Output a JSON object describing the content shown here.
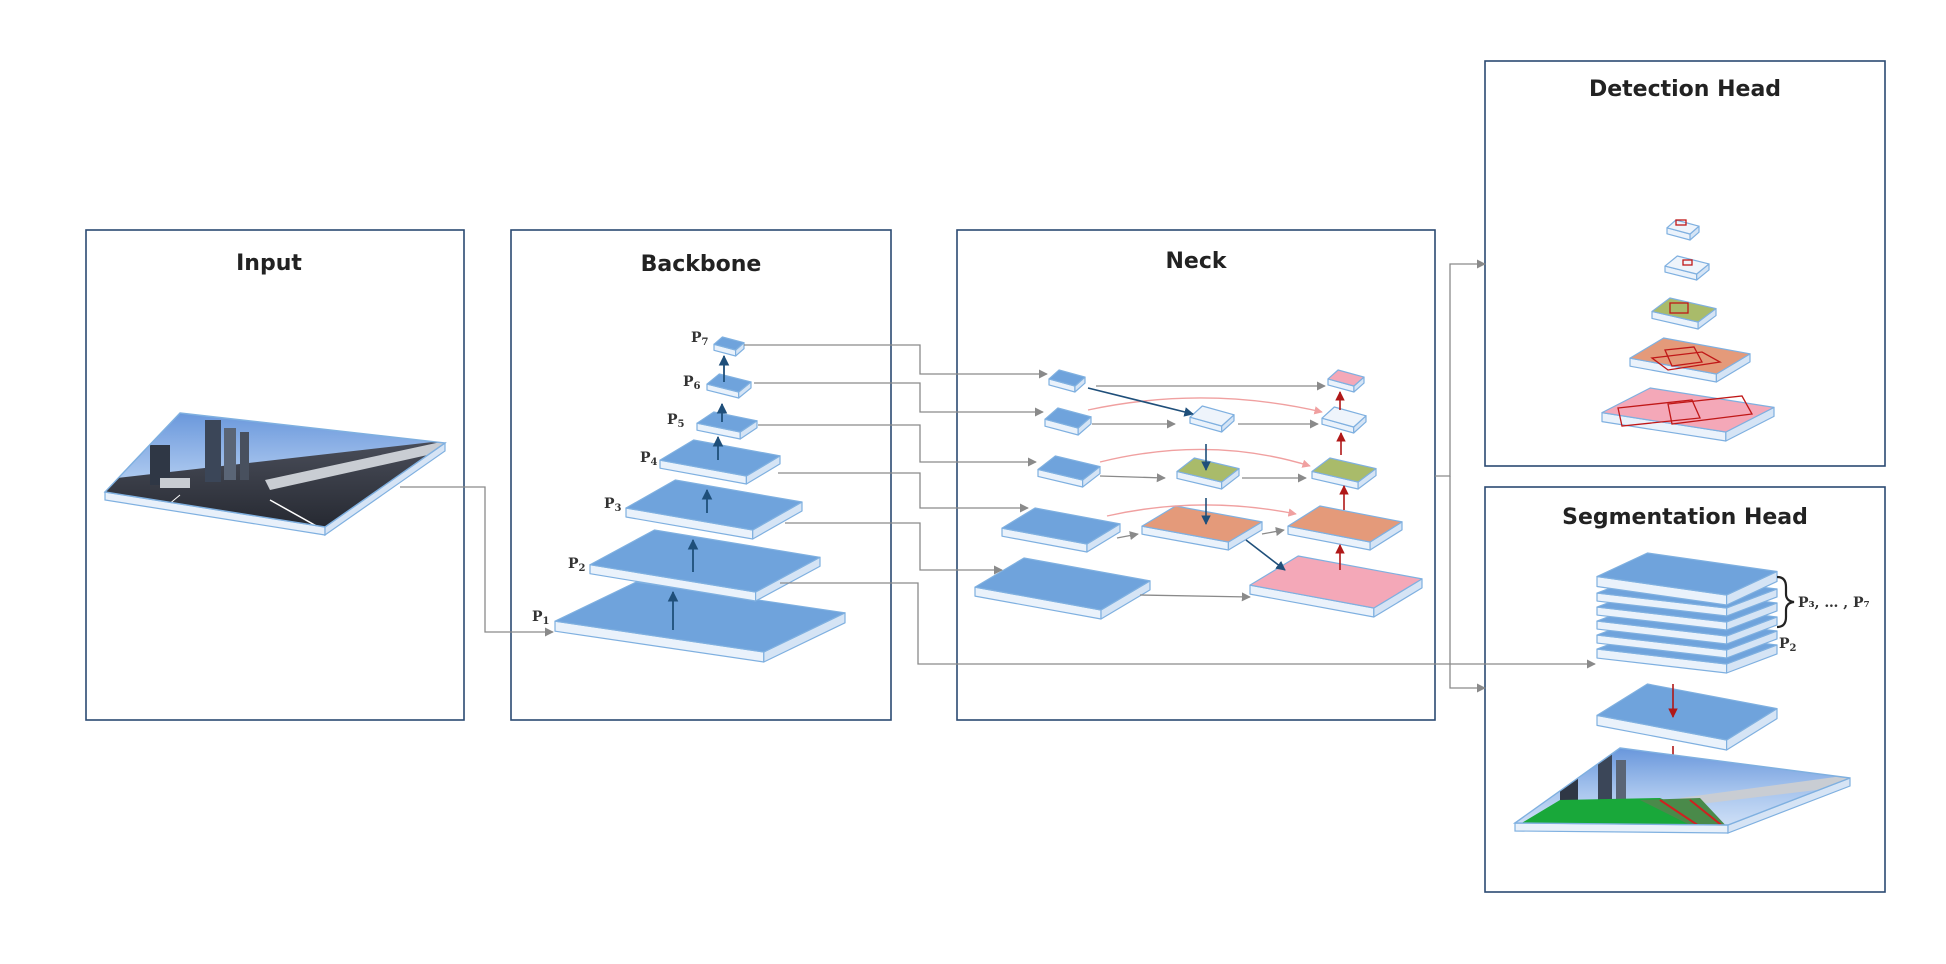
{
  "panels": {
    "input": {
      "title": "Input"
    },
    "backbone": {
      "title": "Backbone"
    },
    "neck": {
      "title": "Neck"
    },
    "detection_head": {
      "title": "Detection Head"
    },
    "segmentation_head": {
      "title": "Segmentation Head"
    }
  },
  "backbone_levels": [
    {
      "letter": "P",
      "sub": "1"
    },
    {
      "letter": "P",
      "sub": "2"
    },
    {
      "letter": "P",
      "sub": "3"
    },
    {
      "letter": "P",
      "sub": "4"
    },
    {
      "letter": "P",
      "sub": "5"
    },
    {
      "letter": "P",
      "sub": "6"
    },
    {
      "letter": "P",
      "sub": "7"
    }
  ],
  "segmentation_labels": {
    "upper": "P₃, … , P₇",
    "lower_letter": "P",
    "lower_sub": "2"
  },
  "colors": {
    "feature_blue": "#6fa3dc",
    "feature_edge": "#7fb0e0",
    "panel_border": "#2b4a72",
    "connector_gray": "#8a8a8a",
    "arrow_navy": "#1f4f7a",
    "arrow_red": "#b01818",
    "arrow_pink": "#f0a0a0",
    "fused_white": "#eef4fb",
    "fused_green": "#a9bb6a",
    "fused_orange": "#e49a7a",
    "fused_pink": "#f4a8b8",
    "road_green": "#1aa83a"
  }
}
